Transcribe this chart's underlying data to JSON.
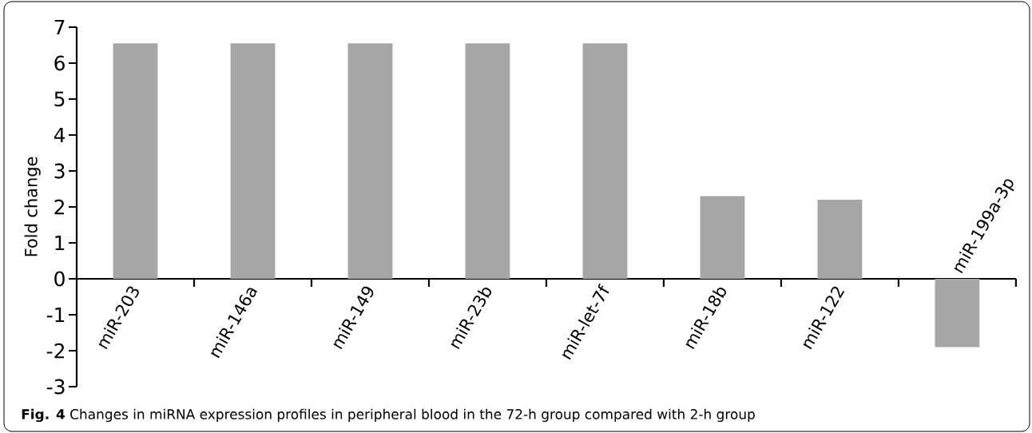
{
  "chart_data": {
    "type": "bar",
    "categories": [
      "miR-203",
      "miR-146a",
      "miR-149",
      "miR-23b",
      "miR-let-7f",
      "miR-18b",
      "miR-122",
      "miR-199a-3p"
    ],
    "values": [
      6.55,
      6.55,
      6.55,
      6.55,
      6.55,
      2.3,
      2.2,
      -1.9
    ],
    "color": "#a6a6a6",
    "ylabel": "Fold change",
    "ylim": [
      -3,
      7
    ],
    "yticks": [
      -3,
      -2,
      -1,
      0,
      1,
      2,
      3,
      4,
      5,
      6,
      7
    ],
    "annotations": [
      "**Fig. 4** Changes in miRNA expression profiles in peripheral blood in the 72-h group compared with 2-h group"
    ]
  }
}
